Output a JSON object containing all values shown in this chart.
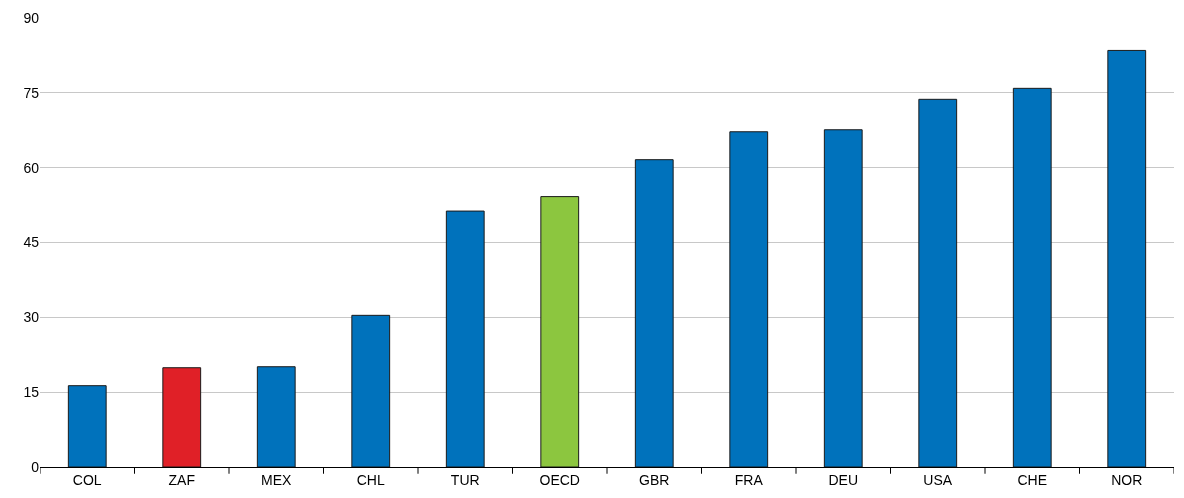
{
  "chart_data": {
    "type": "bar",
    "categories": [
      "COL",
      "ZAF",
      "MEX",
      "CHL",
      "TUR",
      "OECD",
      "GBR",
      "FRA",
      "DEU",
      "USA",
      "CHE",
      "NOR"
    ],
    "values": [
      16.3,
      19.9,
      20.1,
      30.4,
      51.3,
      54.2,
      61.6,
      67.2,
      67.6,
      73.7,
      75.9,
      83.5
    ],
    "colors": [
      "#0072bc",
      "#e02027",
      "#0072bc",
      "#0072bc",
      "#0072bc",
      "#8cc63f",
      "#0072bc",
      "#0072bc",
      "#0072bc",
      "#0072bc",
      "#0072bc",
      "#0072bc"
    ],
    "ylim": [
      0,
      90
    ],
    "yticks": [
      0,
      15,
      30,
      45,
      60,
      75,
      90
    ],
    "grid": "y"
  }
}
